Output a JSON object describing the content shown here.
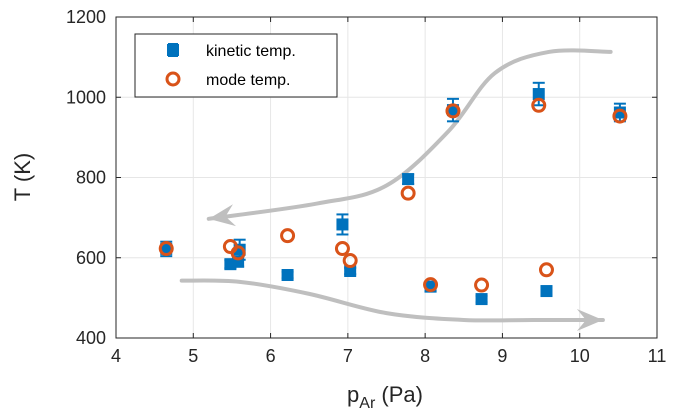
{
  "chart_data": {
    "type": "scatter",
    "xlim": [
      4,
      11
    ],
    "ylim": [
      400,
      1200
    ],
    "xticks": [
      4,
      5,
      6,
      7,
      8,
      9,
      10,
      11
    ],
    "yticks": [
      400,
      600,
      800,
      1000,
      1200
    ],
    "xticklabels": [
      "4",
      "5",
      "6",
      "7",
      "8",
      "9",
      "10",
      "11"
    ],
    "yticklabels": [
      "400",
      "600",
      "800",
      "1000",
      "1200"
    ],
    "xlabel": "p",
    "xlabel_sub": "Ar",
    "xlabel_unit": "(Pa)",
    "ylabel": "T (K)",
    "grid": true,
    "legend_position": "top-left",
    "series": [
      {
        "name": "kinetic temp.",
        "marker": "square",
        "color": "#0072BD",
        "errorbars": true,
        "points": [
          {
            "x": 4.65,
            "y": 622,
            "err": 18
          },
          {
            "x": 5.48,
            "y": 584,
            "err": 10
          },
          {
            "x": 5.58,
            "y": 590,
            "err": 12
          },
          {
            "x": 5.6,
            "y": 620,
            "err": 25
          },
          {
            "x": 6.22,
            "y": 557,
            "err": 8
          },
          {
            "x": 6.93,
            "y": 683,
            "err": 25
          },
          {
            "x": 7.03,
            "y": 567,
            "err": 8
          },
          {
            "x": 7.78,
            "y": 796,
            "err": 12
          },
          {
            "x": 8.07,
            "y": 528,
            "err": 12
          },
          {
            "x": 8.36,
            "y": 968,
            "err": 28
          },
          {
            "x": 8.73,
            "y": 497,
            "err": 8
          },
          {
            "x": 9.47,
            "y": 1008,
            "err": 28
          },
          {
            "x": 9.57,
            "y": 517,
            "err": 10
          },
          {
            "x": 10.52,
            "y": 962,
            "err": 22
          }
        ]
      },
      {
        "name": "mode temp.",
        "marker": "circle",
        "color": "#D95319",
        "errorbars": false,
        "points": [
          {
            "x": 4.65,
            "y": 623
          },
          {
            "x": 5.48,
            "y": 628
          },
          {
            "x": 5.58,
            "y": 612
          },
          {
            "x": 6.22,
            "y": 655
          },
          {
            "x": 6.93,
            "y": 623
          },
          {
            "x": 7.03,
            "y": 593
          },
          {
            "x": 7.78,
            "y": 761
          },
          {
            "x": 8.07,
            "y": 533
          },
          {
            "x": 8.36,
            "y": 966
          },
          {
            "x": 8.73,
            "y": 532
          },
          {
            "x": 9.47,
            "y": 980
          },
          {
            "x": 9.57,
            "y": 570
          },
          {
            "x": 10.52,
            "y": 953
          }
        ]
      }
    ],
    "arrows": [
      {
        "direction": "decreasing",
        "path": [
          [
            10.4,
            1113
          ],
          [
            9.6,
            1113
          ],
          [
            8.9,
            1060
          ],
          [
            8.3,
            915
          ],
          [
            7.5,
            780
          ],
          [
            6.6,
            735
          ],
          [
            5.2,
            697
          ]
        ]
      },
      {
        "direction": "increasing",
        "path": [
          [
            4.85,
            543
          ],
          [
            5.6,
            540
          ],
          [
            6.5,
            510
          ],
          [
            7.5,
            462
          ],
          [
            8.5,
            445
          ],
          [
            9.4,
            445
          ],
          [
            10.3,
            445
          ]
        ]
      }
    ],
    "colors": {
      "axis": "#262626",
      "grid": "#e6e6e6",
      "arrow": "#bfbfbf"
    }
  }
}
